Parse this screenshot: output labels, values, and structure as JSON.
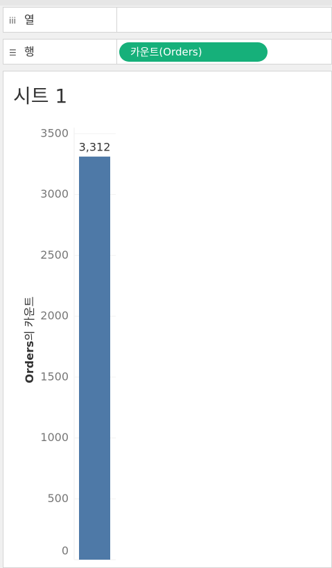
{
  "shelves": {
    "columns": {
      "label": "열"
    },
    "rows": {
      "label": "행",
      "pill": "카운트(Orders)"
    }
  },
  "chart_data": {
    "type": "bar",
    "title": "시트 1",
    "y_label_field": "Orders",
    "y_label_suffix": "의 카운트",
    "categories": [
      null
    ],
    "values": [
      3312
    ],
    "value_labels": [
      "3,312"
    ],
    "color": "#4e79a7",
    "ylim": [
      0,
      3550
    ],
    "yticks": [
      0,
      500,
      1000,
      1500,
      2000,
      2500,
      3000,
      3500
    ],
    "grid": true
  }
}
